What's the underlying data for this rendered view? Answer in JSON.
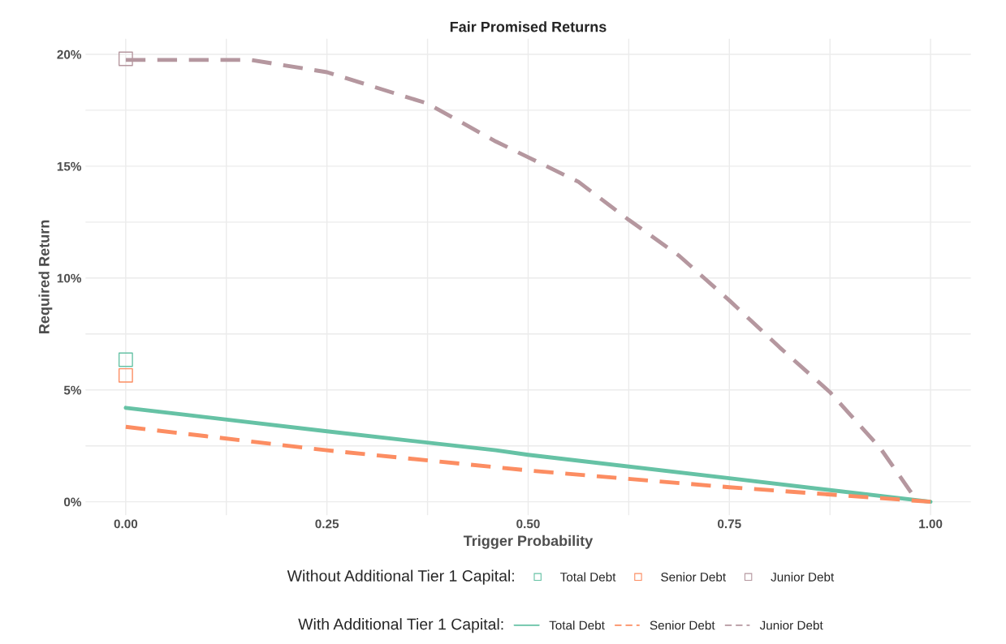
{
  "chart_data": {
    "type": "line",
    "title": "Fair Promised Returns",
    "xlabel": "Trigger Probability",
    "ylabel": "Required Return",
    "legend_title": [
      "Without Additional Tier 1 Capital:",
      "With Additional Tier 1 Capital:"
    ],
    "xlim": [
      -0.05,
      1.05
    ],
    "ylim": [
      -0.6,
      20.7
    ],
    "xticks": [
      {
        "value": 0,
        "label": "0.00"
      },
      {
        "value": 0.125,
        "label": null
      },
      {
        "value": 0.25,
        "label": "0.25"
      },
      {
        "value": 0.375,
        "label": null
      },
      {
        "value": 0.5,
        "label": "0.50"
      },
      {
        "value": 0.625,
        "label": null
      },
      {
        "value": 0.75,
        "label": "0.75"
      },
      {
        "value": 0.875,
        "label": null
      },
      {
        "value": 1,
        "label": "1.00"
      }
    ],
    "yticks": [
      {
        "value": 0,
        "label": "0%"
      },
      {
        "value": 2.5,
        "label": null
      },
      {
        "value": 5,
        "label": "5%"
      },
      {
        "value": 7.5,
        "label": null
      },
      {
        "value": 10,
        "label": "10%"
      },
      {
        "value": 12.5,
        "label": null
      },
      {
        "value": 15,
        "label": "15%"
      },
      {
        "value": 17.5,
        "label": null
      },
      {
        "value": 20,
        "label": "20%"
      }
    ],
    "grid": true,
    "legend": "bottom",
    "series": [
      {
        "name": "Total Debt",
        "type": "scatter",
        "marker": "square",
        "color": "#66c2a5",
        "x": [
          0
        ],
        "values": [
          6.35
        ]
      },
      {
        "name": "Senior Debt",
        "type": "scatter",
        "marker": "square",
        "color": "#fc8d62",
        "x": [
          0
        ],
        "values": [
          5.65
        ]
      },
      {
        "name": "Junior Debt",
        "type": "scatter",
        "marker": "square",
        "color": "#b5979f",
        "x": [
          0
        ],
        "values": [
          19.8
        ]
      },
      {
        "name": "Total Debt",
        "line_style": "solid",
        "color": "#66c2a5",
        "x": [
          0,
          0.25,
          0.46,
          0.5,
          0.75,
          1.0
        ],
        "values": [
          4.2,
          3.15,
          2.3,
          2.1,
          1.05,
          0
        ]
      },
      {
        "name": "Senior Debt",
        "line_style": "dashed",
        "color": "#fc8d62",
        "x": [
          0,
          0.25,
          0.5,
          0.75,
          1.0
        ],
        "values": [
          3.35,
          2.3,
          1.4,
          0.65,
          0
        ]
      },
      {
        "name": "Junior Debt",
        "line_style": "dashed",
        "color": "#b5979f",
        "x": [
          0,
          0.155,
          0.25,
          0.375,
          0.46,
          0.5,
          0.5625,
          0.625,
          0.6875,
          0.75,
          0.8125,
          0.875,
          0.9375,
          0.98
        ],
        "values": [
          19.75,
          19.75,
          19.2,
          17.8,
          16.1,
          15.4,
          14.3,
          12.6,
          11.0,
          9.0,
          6.9,
          4.9,
          2.4,
          0.2
        ]
      }
    ]
  }
}
